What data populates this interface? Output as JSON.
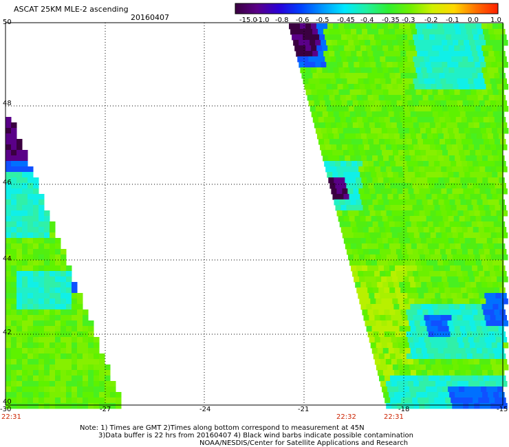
{
  "header": {
    "title": "ASCAT 25KM MLE-2 ascending",
    "date": "20160407"
  },
  "colorbar": {
    "labels": [
      "-15.0",
      "-1.0",
      "-0.8",
      "-0.6",
      "-0.5",
      "-0.45",
      "-0.4",
      "-0.35",
      "-0.3",
      "-0.2",
      "-0.1",
      "0.0",
      "1.0"
    ],
    "colors": [
      "#3a0040",
      "#5a0088",
      "#2a00d8",
      "#0040ff",
      "#0098ff",
      "#00e8ff",
      "#20f0a0",
      "#30f030",
      "#70f000",
      "#d0f000",
      "#ffd800",
      "#ff7000",
      "#ff2000"
    ]
  },
  "axes": {
    "x_ticks": [
      "-30",
      "-27",
      "-24",
      "-21",
      "-18",
      "-15"
    ],
    "y_ticks": [
      "50",
      "48",
      "46",
      "44",
      "42",
      "40"
    ],
    "x_range": [
      -30,
      -15
    ],
    "y_range": [
      40,
      50
    ]
  },
  "times": {
    "t_left": "22:31",
    "t_mid": "22:32",
    "t_right": "22:31"
  },
  "notes": {
    "line1": "Note: 1) Times are GMT 2)Times along bottom correspond to measurement at 45N",
    "line2": "3)Data buffer is 22 hrs from 20160407 4) Black wind barbs indicate possible contamination",
    "line3": "NOAA/NESDIS/Center for Satellite Applications and Research"
  },
  "swaths": [
    {
      "name": "west-swath",
      "dominant_value": "-0.3"
    },
    {
      "name": "east-swath",
      "dominant_value": "-0.3"
    }
  ]
}
